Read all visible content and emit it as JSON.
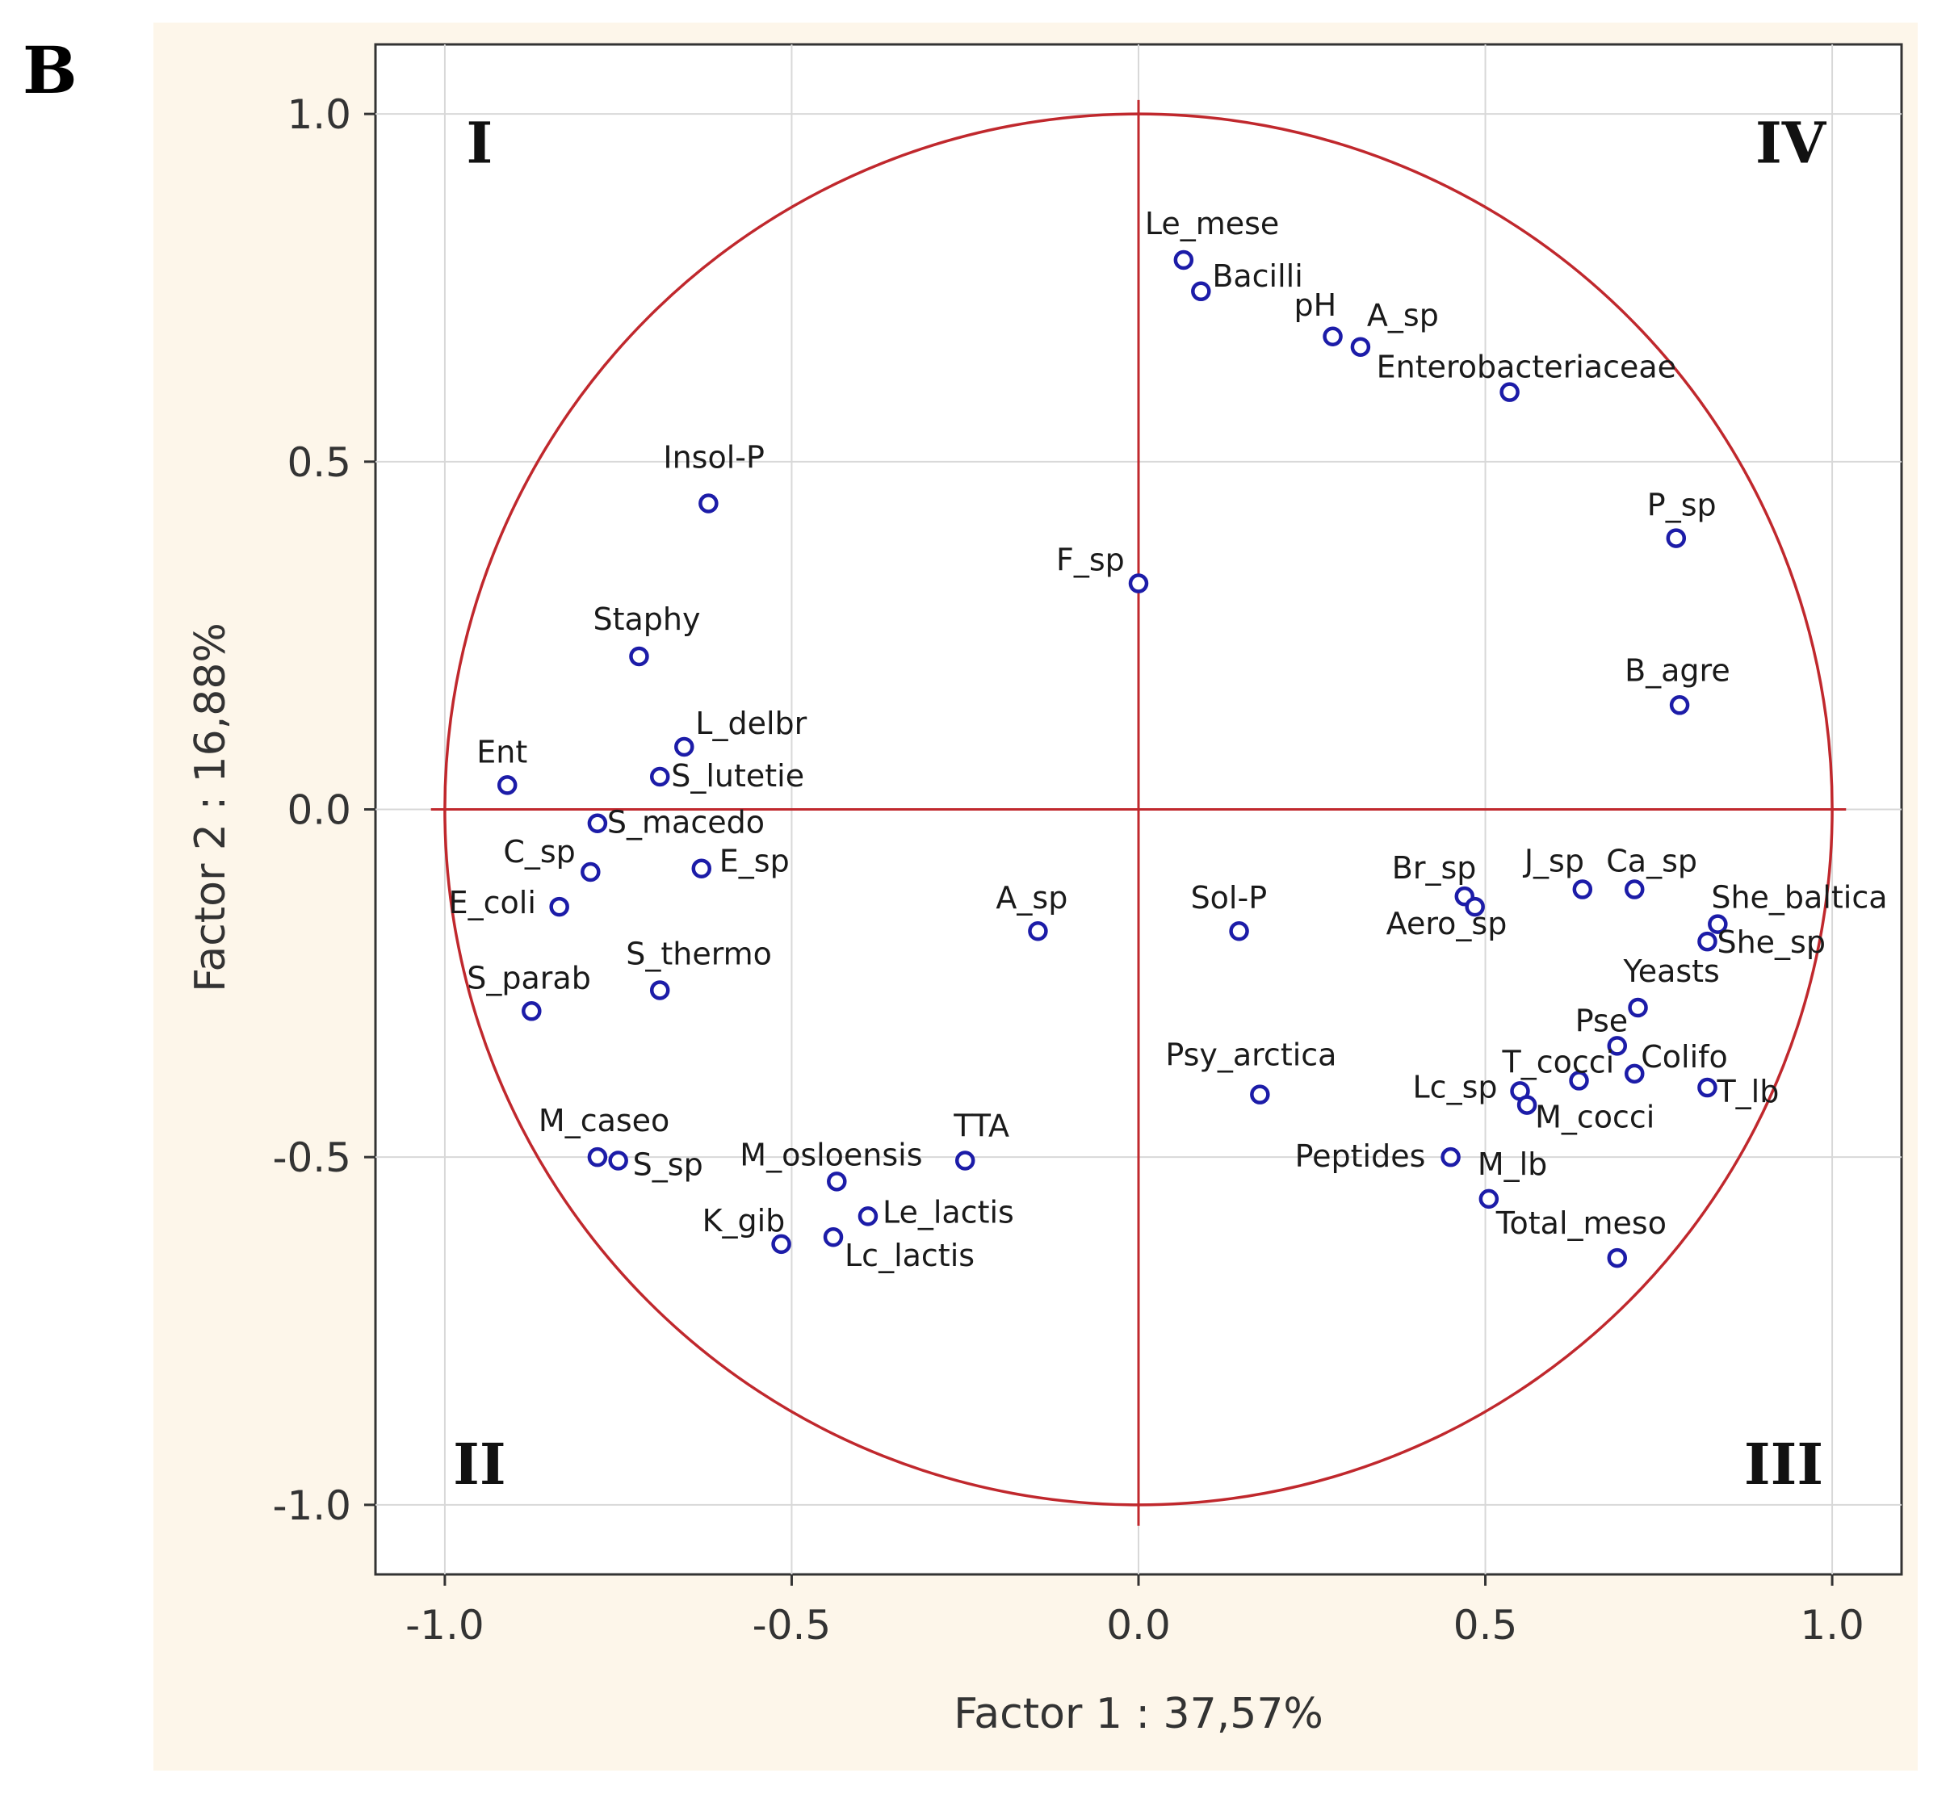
{
  "panel_label": "B",
  "chart_data": {
    "type": "scatter",
    "title": "",
    "xlabel": "Factor 1 : 37,57%",
    "ylabel": "Factor 2 : 16,88%",
    "xlim": [
      -1.1,
      1.1
    ],
    "ylim": [
      -1.1,
      1.1
    ],
    "xticks": [
      -1.0,
      -0.5,
      0.0,
      0.5,
      1.0
    ],
    "yticks": [
      -1.0,
      -0.5,
      0.0,
      0.5,
      1.0
    ],
    "xtick_labels": [
      "-1.0",
      "-0.5",
      "0.0",
      "0.5",
      "1.0"
    ],
    "ytick_labels": [
      "-1.0",
      "-0.5",
      "0.0",
      "0.5",
      "1.0"
    ],
    "grid": true,
    "unit_circle": true,
    "colors": {
      "circle": "#c0282d",
      "points": "#1c1ca8",
      "grid": "#d8d8d8",
      "background": "#fdf6ea"
    },
    "quadrant_labels": [
      {
        "text": "I",
        "position": "top-left"
      },
      {
        "text": "IV",
        "position": "top-right"
      },
      {
        "text": "II",
        "position": "bottom-left"
      },
      {
        "text": "III",
        "position": "bottom-right"
      }
    ],
    "points": [
      {
        "label": "Le_mese",
        "x": 0.065,
        "y": 0.79
      },
      {
        "label": "Bacilli",
        "x": 0.09,
        "y": 0.745
      },
      {
        "label": "pH",
        "x": 0.28,
        "y": 0.68
      },
      {
        "label": "A_sp",
        "x": 0.32,
        "y": 0.665
      },
      {
        "label": "Enterobacteriaceae",
        "x": 0.535,
        "y": 0.6
      },
      {
        "label": "P_sp",
        "x": 0.775,
        "y": 0.39
      },
      {
        "label": "B_agre",
        "x": 0.78,
        "y": 0.15
      },
      {
        "label": "Insol-P",
        "x": -0.62,
        "y": 0.44
      },
      {
        "label": "F_sp",
        "x": 0.0,
        "y": 0.325
      },
      {
        "label": "Staphy",
        "x": -0.72,
        "y": 0.22
      },
      {
        "label": "L_delbr",
        "x": -0.655,
        "y": 0.09
      },
      {
        "label": "S_lutetie",
        "x": -0.69,
        "y": 0.047
      },
      {
        "label": "Ent",
        "x": -0.91,
        "y": 0.035
      },
      {
        "label": "S_macedo",
        "x": -0.78,
        "y": -0.02
      },
      {
        "label": "C_sp",
        "x": -0.79,
        "y": -0.09
      },
      {
        "label": "E_sp",
        "x": -0.63,
        "y": -0.085
      },
      {
        "label": "E_coli",
        "x": -0.835,
        "y": -0.14
      },
      {
        "label": "A_sp",
        "x": -0.145,
        "y": -0.175
      },
      {
        "label": "Sol-P",
        "x": 0.145,
        "y": -0.175
      },
      {
        "label": "Br_sp",
        "x": 0.47,
        "y": -0.125
      },
      {
        "label": "Aero_sp",
        "x": 0.485,
        "y": -0.14
      },
      {
        "label": "J_sp",
        "x": 0.64,
        "y": -0.115
      },
      {
        "label": "Ca_sp",
        "x": 0.715,
        "y": -0.115
      },
      {
        "label": "She_baltica",
        "x": 0.835,
        "y": -0.165
      },
      {
        "label": "She_sp",
        "x": 0.82,
        "y": -0.19
      },
      {
        "label": "S_thermo",
        "x": -0.69,
        "y": -0.26
      },
      {
        "label": "S_parab",
        "x": -0.875,
        "y": -0.29
      },
      {
        "label": "Yeasts",
        "x": 0.72,
        "y": -0.285
      },
      {
        "label": "Pse",
        "x": 0.69,
        "y": -0.34
      },
      {
        "label": "Colifo",
        "x": 0.715,
        "y": -0.38
      },
      {
        "label": "T_cocci",
        "x": 0.635,
        "y": -0.39
      },
      {
        "label": "T_lb",
        "x": 0.82,
        "y": -0.4
      },
      {
        "label": "Lc_sp",
        "x": 0.55,
        "y": -0.405
      },
      {
        "label": "M_cocci",
        "x": 0.56,
        "y": -0.425
      },
      {
        "label": "Psy_arctica",
        "x": 0.175,
        "y": -0.41
      },
      {
        "label": "Peptides",
        "x": 0.45,
        "y": -0.5
      },
      {
        "label": "M_lb",
        "x": 0.505,
        "y": -0.56
      },
      {
        "label": "Total_meso",
        "x": 0.69,
        "y": -0.645
      },
      {
        "label": "M_caseo",
        "x": -0.78,
        "y": -0.5
      },
      {
        "label": "S_sp",
        "x": -0.75,
        "y": -0.505
      },
      {
        "label": "M_osloensis",
        "x": -0.435,
        "y": -0.535
      },
      {
        "label": "TTA",
        "x": -0.25,
        "y": -0.505
      },
      {
        "label": "Le_lactis",
        "x": -0.39,
        "y": -0.585
      },
      {
        "label": "K_gib",
        "x": -0.515,
        "y": -0.625
      },
      {
        "label": "Lc_lactis",
        "x": -0.44,
        "y": -0.615
      }
    ]
  }
}
